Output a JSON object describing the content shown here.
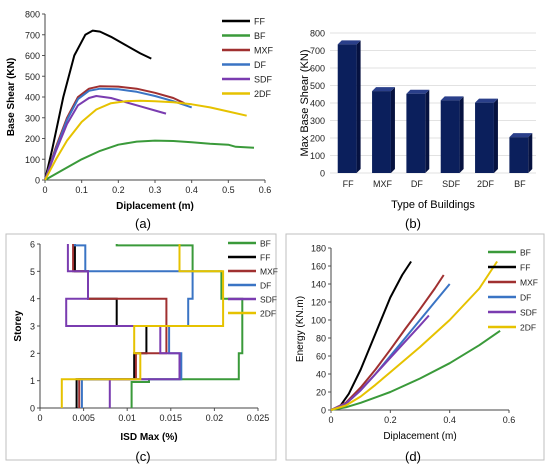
{
  "panel_captions": [
    "(a)",
    "(b)",
    "(c)",
    "(d)"
  ],
  "chart_data": [
    {
      "type": "line",
      "xlabel": "Diplacement (m)",
      "ylabel": "Base Shear (KN)",
      "xlim": [
        0,
        0.6
      ],
      "ylim": [
        0,
        800
      ],
      "xticks": [
        "0",
        "0.1",
        "0.2",
        "0.3",
        "0.4",
        "0.5",
        "0.6"
      ],
      "yticks": [
        "0",
        "100",
        "200",
        "300",
        "400",
        "500",
        "600",
        "700",
        "800"
      ],
      "legend": "top-right",
      "series": [
        {
          "name": "FF",
          "color": "#000000",
          "x": [
            0,
            0.02,
            0.05,
            0.08,
            0.11,
            0.13,
            0.15,
            0.18,
            0.22,
            0.26,
            0.29
          ],
          "y": [
            0,
            150,
            400,
            600,
            700,
            720,
            715,
            690,
            650,
            610,
            585
          ]
        },
        {
          "name": "BF",
          "color": "#3a9a3a",
          "x": [
            0,
            0.05,
            0.1,
            0.15,
            0.2,
            0.25,
            0.3,
            0.35,
            0.4,
            0.45,
            0.5,
            0.52,
            0.57
          ],
          "y": [
            0,
            50,
            100,
            140,
            170,
            185,
            190,
            188,
            182,
            175,
            170,
            160,
            155
          ]
        },
        {
          "name": "MXF",
          "color": "#a03030",
          "x": [
            0,
            0.03,
            0.06,
            0.09,
            0.12,
            0.15,
            0.2,
            0.25,
            0.3,
            0.35,
            0.38
          ],
          "y": [
            0,
            160,
            300,
            400,
            440,
            452,
            450,
            440,
            420,
            395,
            370
          ]
        },
        {
          "name": "DF",
          "color": "#3a74c4",
          "x": [
            0,
            0.03,
            0.06,
            0.09,
            0.12,
            0.15,
            0.2,
            0.25,
            0.3,
            0.35,
            0.4
          ],
          "y": [
            0,
            150,
            290,
            390,
            430,
            440,
            437,
            425,
            405,
            380,
            350
          ]
        },
        {
          "name": "SDF",
          "color": "#7a3cb0",
          "x": [
            0,
            0.03,
            0.06,
            0.09,
            0.12,
            0.14,
            0.18,
            0.22,
            0.26,
            0.3,
            0.33
          ],
          "y": [
            0,
            140,
            270,
            360,
            395,
            405,
            395,
            375,
            355,
            335,
            320
          ]
        },
        {
          "name": "2DF",
          "color": "#e6c200",
          "x": [
            0,
            0.03,
            0.06,
            0.1,
            0.14,
            0.18,
            0.22,
            0.26,
            0.3,
            0.35,
            0.4,
            0.45,
            0.5,
            0.55
          ],
          "y": [
            0,
            100,
            190,
            280,
            340,
            370,
            380,
            382,
            380,
            375,
            365,
            350,
            330,
            310
          ]
        }
      ]
    },
    {
      "type": "bar",
      "xlabel": "Type of Buildings",
      "ylabel": "Max Base Shear (KN)",
      "ylim": [
        0,
        800
      ],
      "yticks": [
        "0",
        "100",
        "200",
        "300",
        "400",
        "500",
        "600",
        "700",
        "800"
      ],
      "categories": [
        "FF",
        "MXF",
        "DF",
        "SDF",
        "2DF",
        "BF"
      ],
      "values": [
        735,
        468,
        453,
        415,
        402,
        205
      ],
      "bar_color": "#0b1f5c"
    },
    {
      "type": "line",
      "step": true,
      "xlabel": "ISD Max (%)",
      "ylabel": "Storey",
      "xlim": [
        0,
        0.025
      ],
      "ylim": [
        0,
        6
      ],
      "xticks": [
        "0",
        "0.005",
        "0.01",
        "0.015",
        "0.02",
        "0.025"
      ],
      "yticks": [
        "0",
        "1",
        "2",
        "3",
        "4",
        "5",
        "6"
      ],
      "legend": "right",
      "series": [
        {
          "name": "BF",
          "color": "#3a9a3a",
          "values": [
            0.0105,
            0.0125,
            0.0228,
            0.0232,
            0.0232,
            0.0208,
            0.0175,
            0.0088
          ]
        },
        {
          "name": "FF",
          "color": "#000000",
          "values": [
            0.0042,
            0.0042,
            0.0108,
            0.0122,
            0.0088,
            0.0055,
            0.004,
            0.004
          ]
        },
        {
          "name": "MXF",
          "color": "#a03030",
          "values": [
            0.0045,
            0.0045,
            0.011,
            0.0145,
            0.0145,
            0.0055,
            0.0038,
            0.0038
          ]
        },
        {
          "name": "DF",
          "color": "#3a74c4",
          "values": [
            0.0048,
            0.0048,
            0.0162,
            0.0148,
            0.017,
            0.0175,
            0.0052,
            0.004
          ]
        },
        {
          "name": "SDF",
          "color": "#7a3cb0",
          "values": [
            0.008,
            0.008,
            0.016,
            0.0138,
            0.003,
            0.0055,
            0.0032,
            0.0032
          ]
        },
        {
          "name": "2DF",
          "color": "#e6c200",
          "values": [
            0.0025,
            0.0025,
            0.0115,
            0.0108,
            0.021,
            0.021,
            0.016,
            0.016
          ]
        }
      ]
    },
    {
      "type": "line",
      "xlabel": "Diplacement (m)",
      "ylabel": "Energy (KN.m)",
      "xlim": [
        0,
        0.6
      ],
      "ylim": [
        0,
        180
      ],
      "xticks": [
        "0",
        "0.2",
        "0.4",
        "0.6"
      ],
      "yticks": [
        "0",
        "20",
        "40",
        "60",
        "80",
        "100",
        "120",
        "140",
        "160",
        "180"
      ],
      "legend": "top-right",
      "series": [
        {
          "name": "BF",
          "color": "#3a9a3a",
          "x": [
            0,
            0.05,
            0.1,
            0.15,
            0.2,
            0.3,
            0.4,
            0.5,
            0.57
          ],
          "y": [
            0,
            3,
            8,
            14,
            20,
            35,
            52,
            72,
            88
          ]
        },
        {
          "name": "FF",
          "color": "#000000",
          "x": [
            0,
            0.03,
            0.06,
            0.1,
            0.15,
            0.2,
            0.24,
            0.27
          ],
          "y": [
            0,
            4,
            18,
            45,
            85,
            125,
            150,
            165
          ]
        },
        {
          "name": "MXF",
          "color": "#a03030",
          "x": [
            0,
            0.05,
            0.1,
            0.15,
            0.2,
            0.25,
            0.3,
            0.35,
            0.38
          ],
          "y": [
            0,
            8,
            25,
            45,
            67,
            90,
            112,
            135,
            150
          ]
        },
        {
          "name": "DF",
          "color": "#3a74c4",
          "x": [
            0,
            0.05,
            0.1,
            0.15,
            0.2,
            0.25,
            0.3,
            0.35,
            0.4
          ],
          "y": [
            0,
            7,
            22,
            40,
            60,
            80,
            100,
            120,
            140
          ]
        },
        {
          "name": "SDF",
          "color": "#7a3cb0",
          "x": [
            0,
            0.05,
            0.1,
            0.15,
            0.2,
            0.25,
            0.3,
            0.33
          ],
          "y": [
            0,
            7,
            22,
            40,
            58,
            76,
            94,
            105
          ]
        },
        {
          "name": "2DF",
          "color": "#e6c200",
          "x": [
            0,
            0.05,
            0.1,
            0.15,
            0.2,
            0.3,
            0.4,
            0.5,
            0.56
          ],
          "y": [
            0,
            5,
            15,
            28,
            42,
            70,
            100,
            135,
            165
          ]
        }
      ]
    }
  ]
}
